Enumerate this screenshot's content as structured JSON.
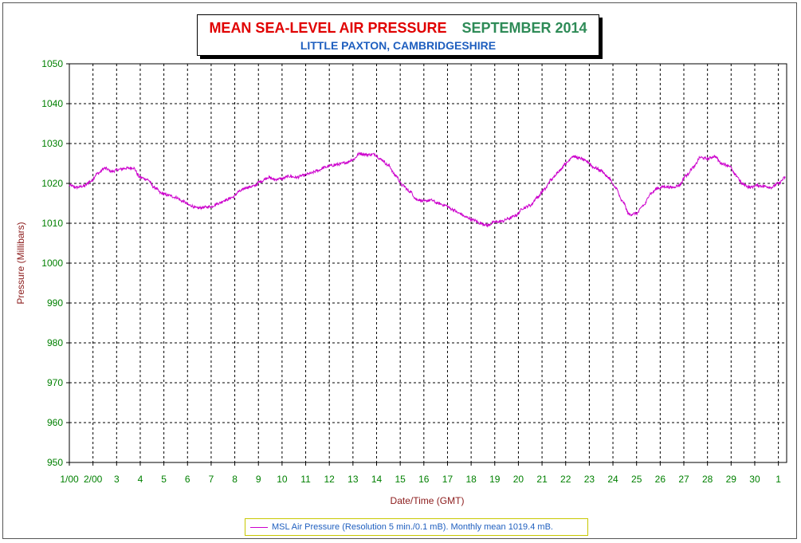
{
  "chart_data": {
    "type": "line",
    "title": "MEAN SEA-LEVEL AIR PRESSURE",
    "title_date": "SEPTEMBER 2014",
    "subtitle": "LITTLE PAXTON, CAMBRIDGESHIRE",
    "xlabel": "Date/Time (GMT)",
    "ylabel": "Pressure (Millibars)",
    "ylim": [
      950,
      1050
    ],
    "y_ticks": [
      "1050",
      "1040",
      "1030",
      "1020",
      "1010",
      "1000",
      "990",
      "980",
      "970",
      "960",
      "950"
    ],
    "x_range_days": [
      1,
      31.35
    ],
    "x_ticks": [
      {
        "day": 1,
        "label": "1/00"
      },
      {
        "day": 2,
        "label": "2/00"
      },
      {
        "day": 3,
        "label": "3"
      },
      {
        "day": 4,
        "label": "4"
      },
      {
        "day": 5,
        "label": "5"
      },
      {
        "day": 6,
        "label": "6"
      },
      {
        "day": 7,
        "label": "7"
      },
      {
        "day": 8,
        "label": "8"
      },
      {
        "day": 9,
        "label": "9"
      },
      {
        "day": 10,
        "label": "10"
      },
      {
        "day": 11,
        "label": "11"
      },
      {
        "day": 12,
        "label": "12"
      },
      {
        "day": 13,
        "label": "13"
      },
      {
        "day": 14,
        "label": "14"
      },
      {
        "day": 15,
        "label": "15"
      },
      {
        "day": 16,
        "label": "16"
      },
      {
        "day": 17,
        "label": "17"
      },
      {
        "day": 18,
        "label": "18"
      },
      {
        "day": 19,
        "label": "19"
      },
      {
        "day": 20,
        "label": "20"
      },
      {
        "day": 21,
        "label": "21"
      },
      {
        "day": 22,
        "label": "22"
      },
      {
        "day": 23,
        "label": "23"
      },
      {
        "day": 24,
        "label": "24"
      },
      {
        "day": 25,
        "label": "25"
      },
      {
        "day": 26,
        "label": "26"
      },
      {
        "day": 27,
        "label": "27"
      },
      {
        "day": 28,
        "label": "28"
      },
      {
        "day": 29,
        "label": "29"
      },
      {
        "day": 30,
        "label": "30"
      },
      {
        "day": 31,
        "label": "1"
      }
    ],
    "grid": true,
    "legend_position": "bottom",
    "series": [
      {
        "name": "MSL Air Pressure (Resolution 5 min./0.1 mB). Monthly mean 1019.4 mB.",
        "color": "#cc00cc",
        "x": [
          1.0,
          1.3,
          1.6,
          1.9,
          2.2,
          2.5,
          2.8,
          3.1,
          3.4,
          3.7,
          4.0,
          4.3,
          4.6,
          4.9,
          5.2,
          5.5,
          5.8,
          6.1,
          6.4,
          6.7,
          7.0,
          7.3,
          7.6,
          7.9,
          8.2,
          8.5,
          8.8,
          9.1,
          9.4,
          9.7,
          10.0,
          10.3,
          10.6,
          10.9,
          11.2,
          11.5,
          11.8,
          12.1,
          12.4,
          12.7,
          13.0,
          13.3,
          13.6,
          13.9,
          14.2,
          14.5,
          14.8,
          15.1,
          15.4,
          15.7,
          16.0,
          16.3,
          16.6,
          16.9,
          17.2,
          17.5,
          17.8,
          18.1,
          18.4,
          18.7,
          19.0,
          19.3,
          19.6,
          19.9,
          20.2,
          20.5,
          20.8,
          21.1,
          21.4,
          21.7,
          22.0,
          22.3,
          22.6,
          22.9,
          23.2,
          23.5,
          23.8,
          24.1,
          24.4,
          24.7,
          25.0,
          25.3,
          25.6,
          25.9,
          26.2,
          26.5,
          26.8,
          27.1,
          27.4,
          27.7,
          28.0,
          28.3,
          28.6,
          28.9,
          29.2,
          29.5,
          29.8,
          30.1,
          30.4,
          30.7,
          31.0,
          31.3
        ],
        "values": [
          1019.5,
          1019.0,
          1019.3,
          1020.5,
          1022.5,
          1023.8,
          1023.0,
          1023.5,
          1023.8,
          1023.9,
          1021.5,
          1021.0,
          1019.0,
          1017.5,
          1017.0,
          1016.5,
          1015.5,
          1014.5,
          1013.8,
          1014.0,
          1014.2,
          1015.0,
          1015.8,
          1016.5,
          1018.0,
          1019.0,
          1019.3,
          1020.5,
          1021.5,
          1021.0,
          1021.2,
          1021.8,
          1021.5,
          1022.0,
          1022.5,
          1023.2,
          1024.0,
          1024.5,
          1024.8,
          1025.2,
          1026.0,
          1027.5,
          1027.2,
          1027.3,
          1026.0,
          1024.5,
          1022.0,
          1019.5,
          1018.0,
          1016.0,
          1015.5,
          1015.8,
          1015.0,
          1014.5,
          1013.5,
          1012.5,
          1011.5,
          1010.8,
          1010.0,
          1009.5,
          1010.3,
          1010.5,
          1011.2,
          1012.0,
          1013.8,
          1014.5,
          1016.5,
          1018.5,
          1021.0,
          1023.0,
          1025.0,
          1026.8,
          1026.3,
          1025.5,
          1024.0,
          1023.2,
          1021.5,
          1019.0,
          1015.5,
          1012.2,
          1012.5,
          1014.5,
          1017.5,
          1018.8,
          1019.2,
          1019.0,
          1019.5,
          1022.0,
          1024.0,
          1026.5,
          1026.2,
          1026.8,
          1025.0,
          1024.5,
          1022.0,
          1019.8,
          1019.0,
          1019.5,
          1019.3,
          1019.0,
          1020.0,
          1021.5
        ]
      }
    ]
  }
}
